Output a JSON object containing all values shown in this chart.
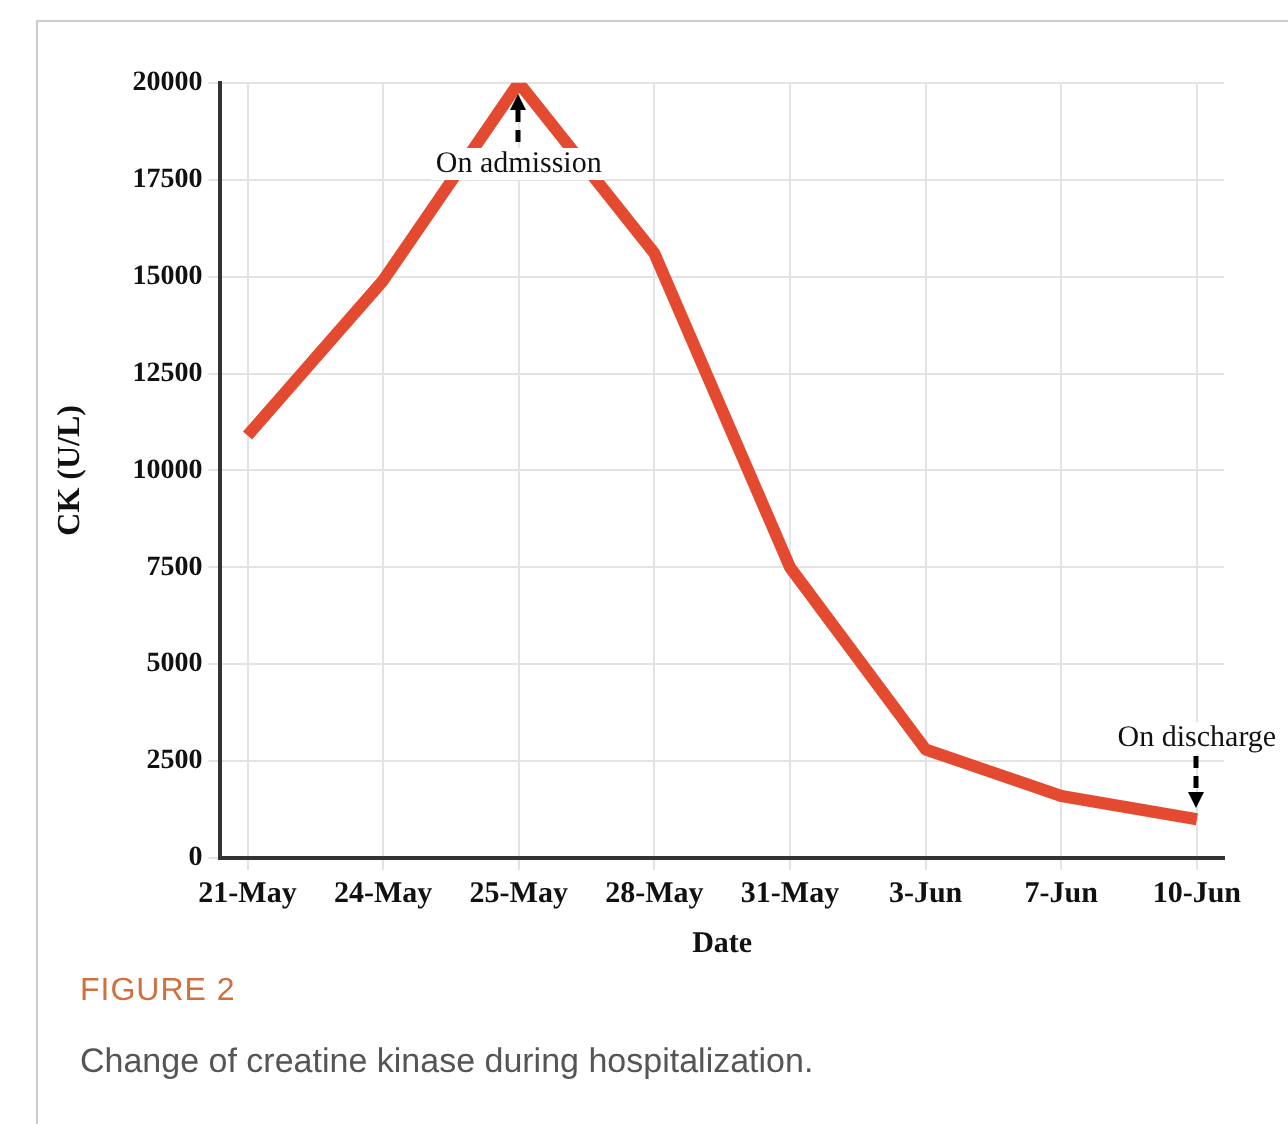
{
  "chart_data": {
    "type": "line",
    "xlabel": "Date",
    "ylabel": "CK (U/L)",
    "categories": [
      "21-May",
      "24-May",
      "25-May",
      "28-May",
      "31-May",
      "3-Jun",
      "7-Jun",
      "10-Jun"
    ],
    "series": [
      {
        "color": "#e34a2f",
        "values": [
          10900,
          14900,
          20000,
          15600,
          7500,
          2800,
          1600,
          1000
        ]
      }
    ],
    "ylim": [
      0,
      20000
    ],
    "yticks": [
      0,
      2500,
      5000,
      7500,
      10000,
      12500,
      15000,
      17500,
      20000
    ],
    "grid": true,
    "legend": false,
    "marker": "none",
    "line_style": "solid",
    "annotations": [
      {
        "text": "On admission",
        "x": "25-May",
        "y": 20000
      },
      {
        "text": "On discharge",
        "x": "10-Jun",
        "y": 1000
      },
      "FIGURE 2",
      "Change of creatine kinase during hospitalization."
    ]
  }
}
